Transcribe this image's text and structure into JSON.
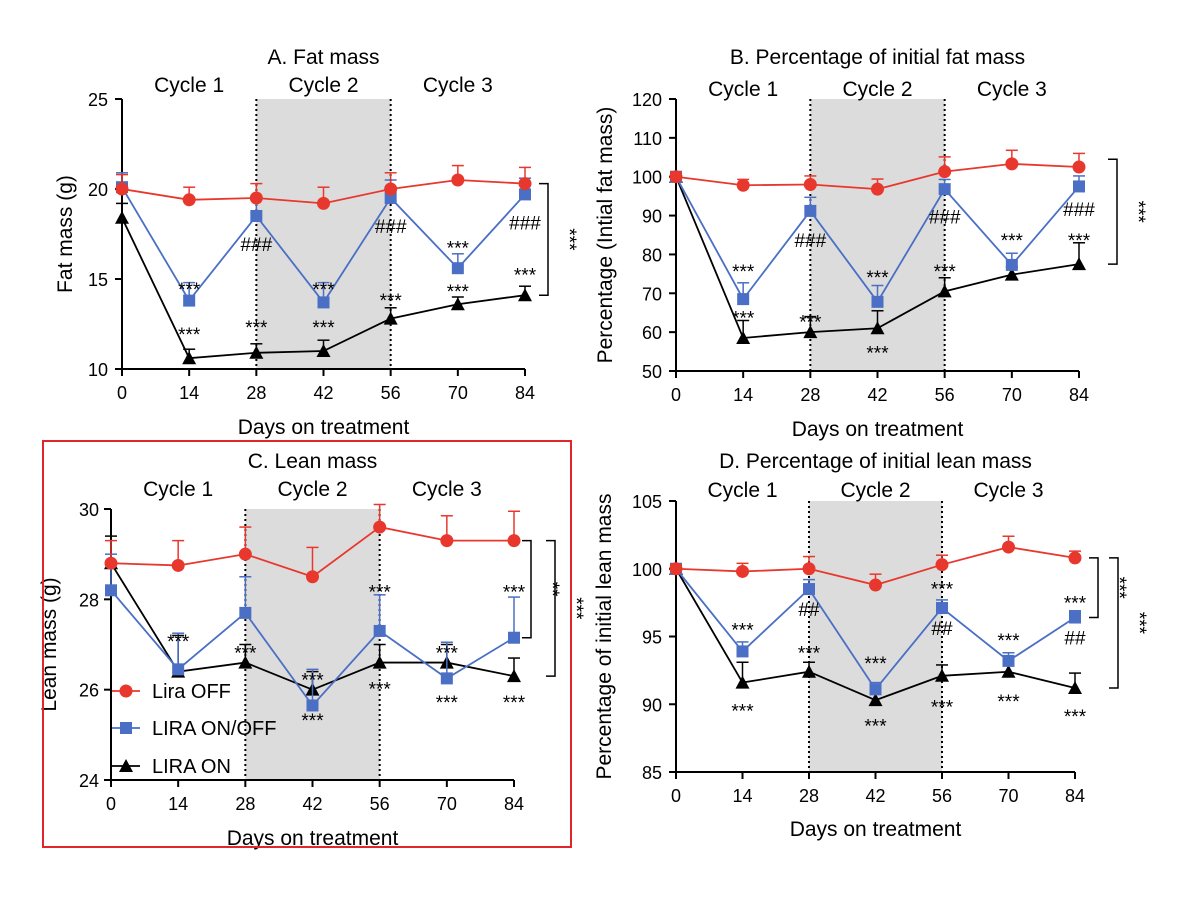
{
  "colors": {
    "lira_off": "#e8382d",
    "lira_onoff": "#4a6fc4",
    "lira_on": "#000000",
    "cycle2_shade": "#dcdcdc",
    "highlight_box": "#e0262a"
  },
  "legend": [
    "Lira OFF",
    "LIRA ON/OFF",
    "LIRA ON"
  ],
  "chart_data": [
    {
      "type": "line",
      "title": "A.  Fat mass",
      "xlabel": "Days on treatment",
      "ylabel": "Fat mass (g)",
      "xlim": [
        0,
        84
      ],
      "ylim": [
        10,
        25
      ],
      "xticks": [
        0,
        14,
        28,
        42,
        56,
        70,
        84
      ],
      "yticks": [
        10,
        15,
        20,
        25
      ],
      "cycles": [
        "Cycle 1",
        "Cycle 2",
        "Cycle 3"
      ],
      "x": [
        0,
        14,
        28,
        42,
        56,
        70,
        84
      ],
      "series": [
        {
          "name": "Lira OFF",
          "marker": "circle",
          "values": [
            20.0,
            19.4,
            19.5,
            19.2,
            20.0,
            20.5,
            20.3
          ],
          "errors": [
            0.8,
            0.7,
            0.8,
            0.9,
            0.9,
            0.8,
            0.9
          ]
        },
        {
          "name": "LIRA ON/OFF",
          "marker": "square",
          "values": [
            20.1,
            13.8,
            18.5,
            13.7,
            19.5,
            15.6,
            19.7
          ],
          "errors": [
            0.8,
            1.0,
            1.0,
            1.1,
            1.0,
            0.8,
            0.9
          ]
        },
        {
          "name": "LIRA ON",
          "marker": "triangle",
          "values": [
            18.4,
            10.6,
            10.9,
            11.0,
            12.8,
            13.6,
            14.1
          ],
          "errors": [
            0.8,
            0.5,
            0.5,
            0.6,
            0.6,
            0.4,
            0.5
          ]
        }
      ],
      "annotations": [
        {
          "text": "***",
          "x": 14,
          "y": 14.5
        },
        {
          "text": "***",
          "x": 14,
          "y": 12.0
        },
        {
          "text": "***",
          "x": 28,
          "y": 12.4
        },
        {
          "text": "###",
          "x": 28,
          "y": 17.0
        },
        {
          "text": "***",
          "x": 42,
          "y": 14.5
        },
        {
          "text": "***",
          "x": 42,
          "y": 12.4
        },
        {
          "text": "###",
          "x": 56,
          "y": 18.0
        },
        {
          "text": "***",
          "x": 56,
          "y": 13.9
        },
        {
          "text": "***",
          "x": 70,
          "y": 16.8
        },
        {
          "text": "***",
          "x": 70,
          "y": 14.4
        },
        {
          "text": "###",
          "x": 84,
          "y": 18.2
        },
        {
          "text": "***",
          "x": 84,
          "y": 15.3
        }
      ],
      "brackets": [
        {
          "text": "***",
          "y1": 20.3,
          "y2": 14.1
        }
      ]
    },
    {
      "type": "line",
      "title": "B. Percentage of initial fat mass",
      "xlabel": "Days on treatment",
      "ylabel": "Percentage (Intial fat mass)",
      "xlim": [
        0,
        84
      ],
      "ylim": [
        50,
        120
      ],
      "xticks": [
        0,
        14,
        28,
        42,
        56,
        70,
        84
      ],
      "yticks": [
        50,
        60,
        70,
        80,
        90,
        100,
        110,
        120
      ],
      "cycles": [
        "Cycle 1",
        "Cycle 2",
        "Cycle 3"
      ],
      "x": [
        0,
        14,
        28,
        42,
        56,
        70,
        84
      ],
      "series": [
        {
          "name": "Lira OFF",
          "marker": "circle",
          "values": [
            100,
            97.8,
            98.0,
            96.8,
            101.3,
            103.3,
            102.5
          ],
          "errors": [
            1.2,
            1.5,
            2.2,
            2.6,
            3.8,
            3.5,
            3.5
          ]
        },
        {
          "name": "LIRA ON/OFF",
          "marker": "square",
          "values": [
            100,
            68.5,
            91.2,
            67.8,
            96.8,
            77.3,
            97.5
          ],
          "errors": [
            1.2,
            4.2,
            3.5,
            4.2,
            2.5,
            3.0,
            2.7
          ]
        },
        {
          "name": "LIRA ON",
          "marker": "triangle",
          "values": [
            100,
            58.5,
            60.0,
            61.0,
            70.5,
            74.8,
            77.5
          ],
          "errors": [
            1.2,
            4.5,
            4.0,
            4.5,
            3.5,
            2.0,
            5.5
          ]
        }
      ],
      "annotations": [
        {
          "text": "***",
          "x": 14,
          "y": 76.0
        },
        {
          "text": "***",
          "x": 14,
          "y": 64.0
        },
        {
          "text": "***",
          "x": 28,
          "y": 63.0
        },
        {
          "text": "###",
          "x": 28,
          "y": 84.0
        },
        {
          "text": "***",
          "x": 42,
          "y": 74.5
        },
        {
          "text": "***",
          "x": 42,
          "y": 55.0
        },
        {
          "text": "###",
          "x": 56,
          "y": 90.0
        },
        {
          "text": "***",
          "x": 56,
          "y": 76.0
        },
        {
          "text": "***",
          "x": 70,
          "y": 84.0
        },
        {
          "text": "###",
          "x": 84,
          "y": 92.0
        },
        {
          "text": "***",
          "x": 84,
          "y": 84.0
        }
      ],
      "brackets": [
        {
          "text": "***",
          "y1": 104.5,
          "y2": 77.5
        }
      ]
    },
    {
      "type": "line",
      "title": "C. Lean mass",
      "xlabel": "Days on treatment",
      "ylabel": "Lean mass (g)",
      "xlim": [
        0,
        84
      ],
      "ylim": [
        24,
        30
      ],
      "xticks": [
        0,
        14,
        28,
        42,
        56,
        70,
        84
      ],
      "yticks": [
        24,
        26,
        28,
        30
      ],
      "cycles": [
        "Cycle 1",
        "Cycle 2",
        "Cycle 3"
      ],
      "x": [
        0,
        14,
        28,
        42,
        56,
        70,
        84
      ],
      "series": [
        {
          "name": "Lira OFF",
          "marker": "circle",
          "values": [
            28.8,
            28.75,
            29.0,
            28.5,
            29.6,
            29.3,
            29.3
          ],
          "errors": [
            0.5,
            0.55,
            0.6,
            0.65,
            0.5,
            0.55,
            0.65
          ]
        },
        {
          "name": "LIRA ON/OFF",
          "marker": "square",
          "values": [
            28.2,
            26.45,
            27.7,
            25.65,
            27.3,
            26.25,
            27.15
          ],
          "errors": [
            0.8,
            0.8,
            0.8,
            0.8,
            0.8,
            0.8,
            0.9
          ]
        },
        {
          "name": "LIRA ON",
          "marker": "triangle",
          "values": [
            28.8,
            26.4,
            26.6,
            26.0,
            26.6,
            26.6,
            26.3
          ],
          "errors": [
            0.6,
            0.8,
            0.4,
            0.4,
            0.4,
            0.4,
            0.4
          ]
        }
      ],
      "annotations": [
        {
          "text": "***",
          "x": 14,
          "y": 27.1
        },
        {
          "text": "***",
          "x": 28,
          "y": 26.85
        },
        {
          "text": "***",
          "x": 42,
          "y": 26.25
        },
        {
          "text": "***",
          "x": 42,
          "y": 25.35
        },
        {
          "text": "***",
          "x": 56,
          "y": 28.2
        },
        {
          "text": "***",
          "x": 56,
          "y": 26.05
        },
        {
          "text": "***",
          "x": 70,
          "y": 26.85
        },
        {
          "text": "***",
          "x": 70,
          "y": 25.75
        },
        {
          "text": "***",
          "x": 84,
          "y": 28.2
        },
        {
          "text": "***",
          "x": 84,
          "y": 25.75
        }
      ],
      "brackets": [
        {
          "text": "**",
          "y1": 29.3,
          "y2": 27.15
        },
        {
          "text": "***",
          "y1": 29.3,
          "y2": 26.3
        }
      ]
    },
    {
      "type": "line",
      "title": "D. Percentage of initial lean mass",
      "xlabel": "Days on treatment",
      "ylabel": "Percentage  of initial lean mass",
      "xlim": [
        0,
        84
      ],
      "ylim": [
        85,
        105
      ],
      "xticks": [
        0,
        14,
        28,
        42,
        56,
        70,
        84
      ],
      "yticks": [
        85,
        90,
        95,
        100,
        105
      ],
      "cycles": [
        "Cycle 1",
        "Cycle 2",
        "Cycle 3"
      ],
      "x": [
        0,
        14,
        28,
        42,
        56,
        70,
        84
      ],
      "series": [
        {
          "name": "Lira OFF",
          "marker": "circle",
          "values": [
            100,
            99.8,
            100.0,
            98.8,
            100.3,
            101.6,
            100.8
          ],
          "errors": [
            0.3,
            0.6,
            0.9,
            0.8,
            0.7,
            0.8,
            0.5
          ]
        },
        {
          "name": "LIRA ON/OFF",
          "marker": "square",
          "values": [
            100,
            93.9,
            98.5,
            91.1,
            97.1,
            93.2,
            96.4
          ],
          "errors": [
            0.3,
            0.7,
            0.7,
            0.5,
            0.6,
            0.6,
            0.5
          ]
        },
        {
          "name": "LIRA ON",
          "marker": "triangle",
          "values": [
            100,
            91.6,
            92.4,
            90.3,
            92.1,
            92.4,
            91.2
          ],
          "errors": [
            0.3,
            1.5,
            0.7,
            0.6,
            0.8,
            0.6,
            1.1
          ]
        }
      ],
      "annotations": [
        {
          "text": "***",
          "x": 14,
          "y": 95.6
        },
        {
          "text": "***",
          "x": 14,
          "y": 89.6
        },
        {
          "text": "##",
          "x": 28,
          "y": 97.1
        },
        {
          "text": "***",
          "x": 28,
          "y": 93.9
        },
        {
          "text": "***",
          "x": 42,
          "y": 93.1
        },
        {
          "text": "***",
          "x": 42,
          "y": 88.5
        },
        {
          "text": "***",
          "x": 56,
          "y": 98.6
        },
        {
          "text": "##",
          "x": 56,
          "y": 95.7
        },
        {
          "text": "***",
          "x": 56,
          "y": 89.9
        },
        {
          "text": "***",
          "x": 70,
          "y": 94.8
        },
        {
          "text": "***",
          "x": 70,
          "y": 90.3
        },
        {
          "text": "***",
          "x": 84,
          "y": 97.6
        },
        {
          "text": "##",
          "x": 84,
          "y": 95.0
        },
        {
          "text": "***",
          "x": 84,
          "y": 89.2
        }
      ],
      "brackets": [
        {
          "text": "***",
          "y1": 100.8,
          "y2": 96.4
        },
        {
          "text": "***",
          "y1": 100.8,
          "y2": 91.2
        }
      ]
    }
  ]
}
